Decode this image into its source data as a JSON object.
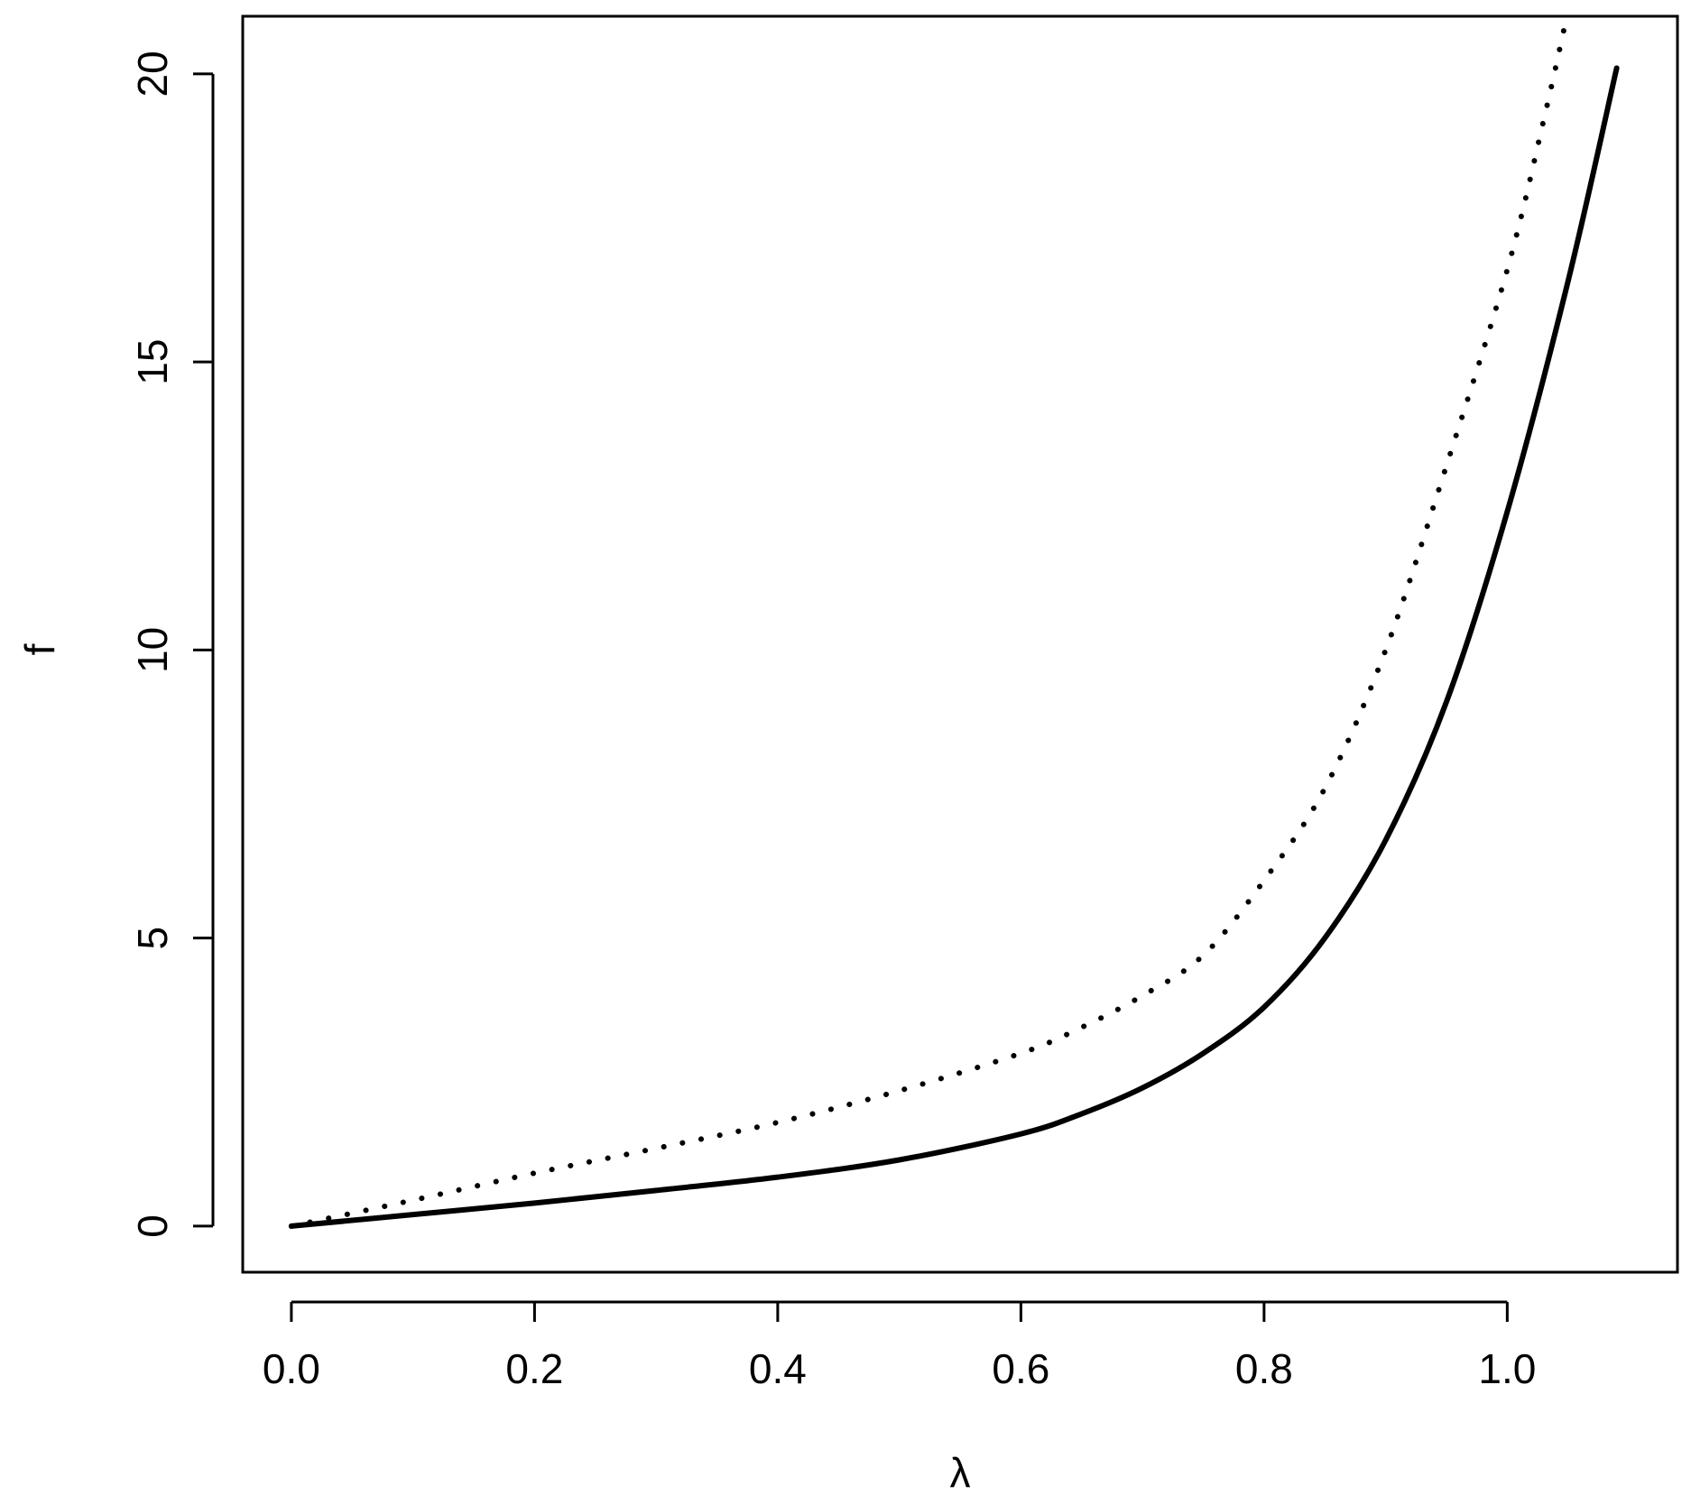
{
  "chart_data": {
    "type": "line",
    "xlabel": "λ",
    "ylabel": "f",
    "xlim": [
      -0.04,
      1.14
    ],
    "ylim": [
      -0.8,
      21.0
    ],
    "x_ticks": [
      0.0,
      0.2,
      0.4,
      0.6,
      0.8,
      1.0
    ],
    "x_tick_labels": [
      "0.0",
      "0.2",
      "0.4",
      "0.6",
      "0.8",
      "1.0"
    ],
    "y_ticks": [
      0,
      5,
      10,
      15,
      20
    ],
    "y_tick_labels": [
      "0",
      "5",
      "10",
      "15",
      "20"
    ],
    "grid": false,
    "legend": "none",
    "series": [
      {
        "style": "solid",
        "color": "#000000",
        "points": [
          [
            0.0,
            0.0
          ],
          [
            0.1,
            0.2
          ],
          [
            0.2,
            0.4
          ],
          [
            0.3,
            0.62
          ],
          [
            0.4,
            0.85
          ],
          [
            0.5,
            1.15
          ],
          [
            0.6,
            1.6
          ],
          [
            0.65,
            1.95
          ],
          [
            0.7,
            2.4
          ],
          [
            0.75,
            3.0
          ],
          [
            0.8,
            3.8
          ],
          [
            0.85,
            5.0
          ],
          [
            0.9,
            6.7
          ],
          [
            0.95,
            9.1
          ],
          [
            1.0,
            12.4
          ],
          [
            1.05,
            16.4
          ],
          [
            1.09,
            20.1
          ]
        ]
      },
      {
        "style": "dotted",
        "color": "#000000",
        "points": [
          [
            0.0,
            0.0
          ],
          [
            0.1,
            0.45
          ],
          [
            0.2,
            0.92
          ],
          [
            0.3,
            1.35
          ],
          [
            0.4,
            1.8
          ],
          [
            0.5,
            2.35
          ],
          [
            0.6,
            3.0
          ],
          [
            0.65,
            3.45
          ],
          [
            0.7,
            4.0
          ],
          [
            0.75,
            4.7
          ],
          [
            0.8,
            6.0
          ],
          [
            0.85,
            7.6
          ],
          [
            0.9,
            10.0
          ],
          [
            0.95,
            13.2
          ],
          [
            1.0,
            16.6
          ],
          [
            1.03,
            19.2
          ],
          [
            1.048,
            20.9
          ]
        ]
      }
    ]
  }
}
